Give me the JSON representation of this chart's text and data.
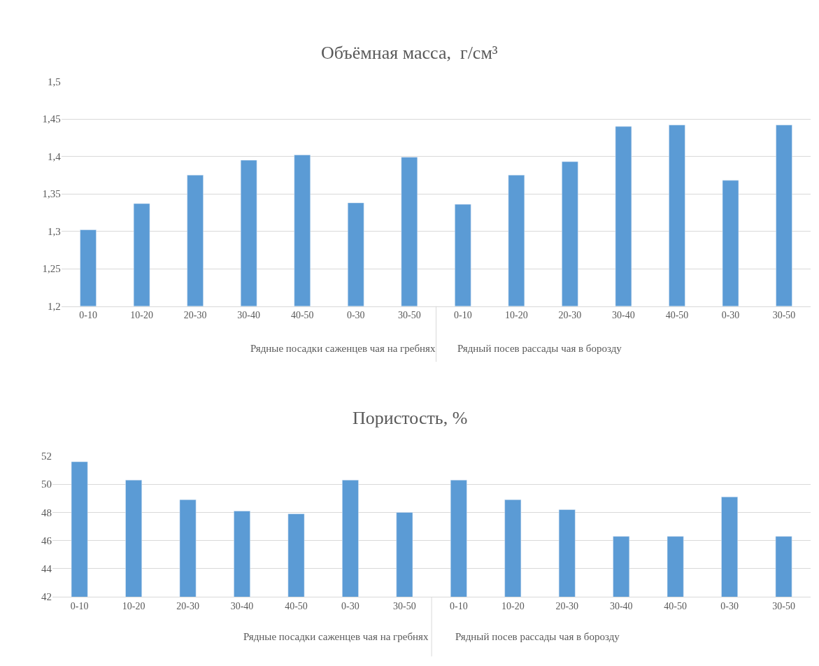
{
  "chart_data": [
    {
      "type": "bar",
      "title": "Объёмная масса,  г/см³",
      "categories": [
        "0-10",
        "10-20",
        "20-30",
        "30-40",
        "40-50",
        "0-30",
        "30-50",
        "0-10",
        "10-20",
        "20-30",
        "30-40",
        "40-50",
        "0-30",
        "30-50"
      ],
      "values": [
        1.302,
        1.337,
        1.375,
        1.395,
        1.402,
        1.338,
        1.399,
        1.336,
        1.375,
        1.393,
        1.44,
        1.442,
        1.368,
        1.442
      ],
      "color": "#5b9bd5",
      "ylim": [
        1.2,
        1.5
      ],
      "yticks": [
        {
          "value": 1.2,
          "label": "1,2"
        },
        {
          "value": 1.25,
          "label": "1,25"
        },
        {
          "value": 1.3,
          "label": "1,3"
        },
        {
          "value": 1.35,
          "label": "1,35"
        },
        {
          "value": 1.4,
          "label": "1,4"
        },
        {
          "value": 1.45,
          "label": "1,45"
        },
        {
          "value": 1.5,
          "label": "1,5"
        }
      ],
      "grid": "y",
      "legend": false,
      "annotations": [
        "Рядные посадки саженцев чая на гребнях",
        "Рядный посев рассады чая в борозду"
      ]
    },
    {
      "type": "bar",
      "title": "Пористость, %",
      "categories": [
        "0-10",
        "10-20",
        "20-30",
        "30-40",
        "40-50",
        "0-30",
        "30-50",
        "0-10",
        "10-20",
        "20-30",
        "30-40",
        "40-50",
        "0-30",
        "30-50"
      ],
      "values": [
        51.6,
        50.3,
        48.9,
        48.1,
        47.9,
        50.3,
        48.0,
        50.3,
        48.9,
        48.2,
        46.3,
        46.3,
        49.1,
        46.3
      ],
      "color": "#5b9bd5",
      "ylim": [
        42,
        52
      ],
      "yticks": [
        42,
        44,
        46,
        48,
        50,
        52
      ],
      "grid": "y",
      "legend": false,
      "annotations": [
        "Рядные посадки саженцев чая на гребнях",
        "Рядный посев рассады чая в борозду"
      ]
    }
  ]
}
